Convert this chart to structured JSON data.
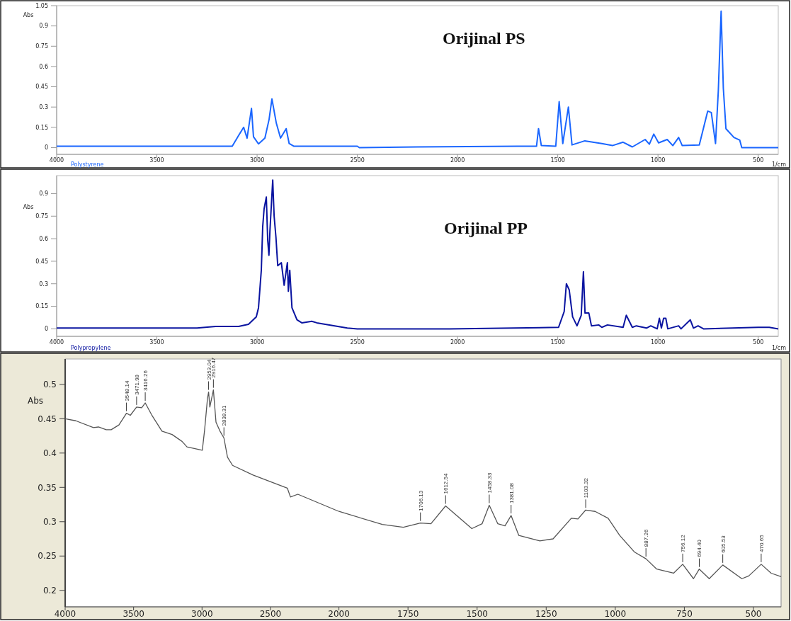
{
  "chart_data": [
    {
      "type": "line",
      "title": "Orijinal PS",
      "ylabel": "Abs",
      "xlabel": "1/cm",
      "xlim": [
        4000,
        400
      ],
      "ylim": [
        -0.05,
        1.05
      ],
      "xticks": [
        4000,
        3500,
        3000,
        2500,
        2000,
        1500,
        1000,
        500
      ],
      "yticks": [
        0,
        0.15,
        0.3,
        0.45,
        0.6,
        0.75,
        0.9,
        1.05
      ],
      "series": [
        {
          "name": "Polystyrene",
          "color": "#1a66ff",
          "x": [
            4000,
            3500,
            3124,
            3092,
            3067,
            3050,
            3028,
            3018,
            2993,
            2961,
            2940,
            2926,
            2904,
            2883,
            2855,
            2840,
            2816,
            2500,
            2490,
            2200,
            1700,
            1606,
            1596,
            1582,
            1510,
            1493,
            1475,
            1447,
            1429,
            1365,
            1280,
            1227,
            1174,
            1128,
            1064,
            1043,
            1021,
            997,
            954,
            926,
            897,
            879,
            794,
            752,
            734,
            713,
            699,
            685,
            674,
            661,
            621,
            592,
            582,
            400
          ],
          "values": [
            0.01,
            0.01,
            0.01,
            0.09,
            0.15,
            0.07,
            0.29,
            0.08,
            0.027,
            0.07,
            0.21,
            0.36,
            0.18,
            0.07,
            0.14,
            0.03,
            0.01,
            0.01,
            0.0,
            0.005,
            0.01,
            0.01,
            0.14,
            0.015,
            0.01,
            0.34,
            0.03,
            0.3,
            0.02,
            0.05,
            0.03,
            0.015,
            0.04,
            0.005,
            0.06,
            0.025,
            0.1,
            0.035,
            0.06,
            0.015,
            0.075,
            0.015,
            0.02,
            0.27,
            0.26,
            0.03,
            0.42,
            1.01,
            0.44,
            0.14,
            0.075,
            0.055,
            0.0,
            0.0
          ]
        }
      ]
    },
    {
      "type": "line",
      "title": "Orijinal PP",
      "ylabel": "Abs",
      "xlabel": "1/cm",
      "xlim": [
        4000,
        400
      ],
      "ylim": [
        -0.05,
        1.02
      ],
      "xticks": [
        4000,
        3500,
        3000,
        2500,
        2000,
        1500,
        1000,
        500
      ],
      "yticks": [
        0,
        0.15,
        0.3,
        0.45,
        0.6,
        0.75,
        0.9
      ],
      "series": [
        {
          "name": "Polypropylene",
          "color": "#0a14a0",
          "x": [
            4000,
            3300,
            3207,
            3092,
            3043,
            3004,
            2993,
            2979,
            2972,
            2965,
            2954,
            2947,
            2941,
            2936,
            2922,
            2915,
            2906,
            2897,
            2879,
            2865,
            2849,
            2844,
            2837,
            2826,
            2801,
            2777,
            2727,
            2702,
            2550,
            2500,
            2040,
            1720,
            1496,
            1468,
            1457,
            1443,
            1426,
            1404,
            1383,
            1372,
            1364,
            1345,
            1332,
            1296,
            1280,
            1252,
            1174,
            1158,
            1128,
            1108,
            1057,
            1036,
            1004,
            993,
            983,
            972,
            961,
            951,
            897,
            885,
            839,
            823,
            800,
            773,
            500,
            445,
            400
          ],
          "values": [
            0.005,
            0.005,
            0.016,
            0.016,
            0.03,
            0.08,
            0.14,
            0.39,
            0.68,
            0.8,
            0.877,
            0.59,
            0.49,
            0.65,
            0.99,
            0.75,
            0.61,
            0.42,
            0.44,
            0.29,
            0.44,
            0.25,
            0.39,
            0.14,
            0.06,
            0.04,
            0.05,
            0.04,
            0.005,
            0.0,
            0.0,
            0.005,
            0.01,
            0.115,
            0.3,
            0.26,
            0.08,
            0.02,
            0.09,
            0.38,
            0.105,
            0.105,
            0.02,
            0.026,
            0.01,
            0.026,
            0.01,
            0.09,
            0.01,
            0.02,
            0.005,
            0.02,
            0.0,
            0.07,
            0.005,
            0.07,
            0.07,
            0.0,
            0.02,
            0.0,
            0.06,
            0.005,
            0.02,
            0.0,
            0.01,
            0.01,
            0.0
          ]
        }
      ]
    },
    {
      "type": "line",
      "ylabel": "Abs",
      "xlim": [
        4000,
        2000
      ],
      "ylim": [
        0.176,
        0.537
      ],
      "xticks": [
        4000,
        3500,
        3000,
        2500,
        2000
      ],
      "yticks": [
        0.2,
        0.25,
        0.3,
        0.35,
        0.4,
        0.45,
        0.5
      ],
      "series": [
        {
          "color": "#555555",
          "x": [
            4000,
            3922,
            3793,
            3757,
            3700,
            3664,
            3607,
            3552,
            3524,
            3478,
            3441,
            3415,
            3369,
            3293,
            3219,
            3146,
            3110,
            2998,
            2981,
            2960,
            2952,
            2943,
            2917,
            2898,
            2869,
            2840,
            2814,
            2777,
            2627,
            2377,
            2354,
            2300,
            2000
          ],
          "values": [
            0.45,
            0.447,
            0.437,
            0.438,
            0.434,
            0.434,
            0.441,
            0.458,
            0.455,
            0.467,
            0.466,
            0.473,
            0.456,
            0.432,
            0.427,
            0.417,
            0.409,
            0.404,
            0.434,
            0.48,
            0.489,
            0.467,
            0.492,
            0.445,
            0.432,
            0.422,
            0.394,
            0.382,
            0.368,
            0.349,
            0.336,
            0.34,
            0.315
          ]
        }
      ],
      "annotations": [
        {
          "text": "3548.14",
          "x": 3552,
          "y": 0.458
        },
        {
          "text": "3471.98",
          "x": 3478,
          "y": 0.467
        },
        {
          "text": "3416.26",
          "x": 3415,
          "y": 0.473
        },
        {
          "text": "2953.04",
          "x": 2952,
          "y": 0.489
        },
        {
          "text": "2916.47",
          "x": 2917,
          "y": 0.492
        },
        {
          "text": "2838.31",
          "x": 2840,
          "y": 0.422
        }
      ]
    },
    {
      "type": "line",
      "tick_labels": "x",
      "xlim": [
        2000,
        400
      ],
      "ylim": [
        0.176,
        0.537
      ],
      "xticks": [
        1750,
        1500,
        1250,
        1000,
        750,
        500
      ],
      "series": [
        {
          "color": "#555555",
          "x": [
            2000,
            1843,
            1767,
            1705,
            1667,
            1614,
            1519,
            1482,
            1456,
            1425,
            1399,
            1377,
            1349,
            1273,
            1225,
            1159,
            1135,
            1107,
            1073,
            1026,
            984,
            931,
            889,
            850,
            789,
            756,
            717,
            696,
            660,
            611,
            542,
            517,
            472,
            436,
            400
          ],
          "values": [
            0.315,
            0.296,
            0.292,
            0.298,
            0.297,
            0.323,
            0.29,
            0.297,
            0.324,
            0.297,
            0.294,
            0.309,
            0.28,
            0.272,
            0.275,
            0.305,
            0.304,
            0.317,
            0.315,
            0.305,
            0.28,
            0.256,
            0.246,
            0.231,
            0.225,
            0.238,
            0.217,
            0.231,
            0.217,
            0.237,
            0.217,
            0.221,
            0.238,
            0.225,
            0.22
          ]
        }
      ],
      "annotations": [
        {
          "text": "1706.13",
          "x": 1705,
          "y": 0.298
        },
        {
          "text": "1612.54",
          "x": 1614,
          "y": 0.323
        },
        {
          "text": "1458.33",
          "x": 1456,
          "y": 0.324
        },
        {
          "text": "1381.08",
          "x": 1377,
          "y": 0.309
        },
        {
          "text": "1103.32",
          "x": 1107,
          "y": 0.317
        },
        {
          "text": "887.26",
          "x": 889,
          "y": 0.246
        },
        {
          "text": "756.12",
          "x": 756,
          "y": 0.238
        },
        {
          "text": "694.40",
          "x": 696,
          "y": 0.231
        },
        {
          "text": "605.53",
          "x": 611,
          "y": 0.237
        },
        {
          "text": "470.65",
          "x": 472,
          "y": 0.238
        }
      ]
    }
  ]
}
